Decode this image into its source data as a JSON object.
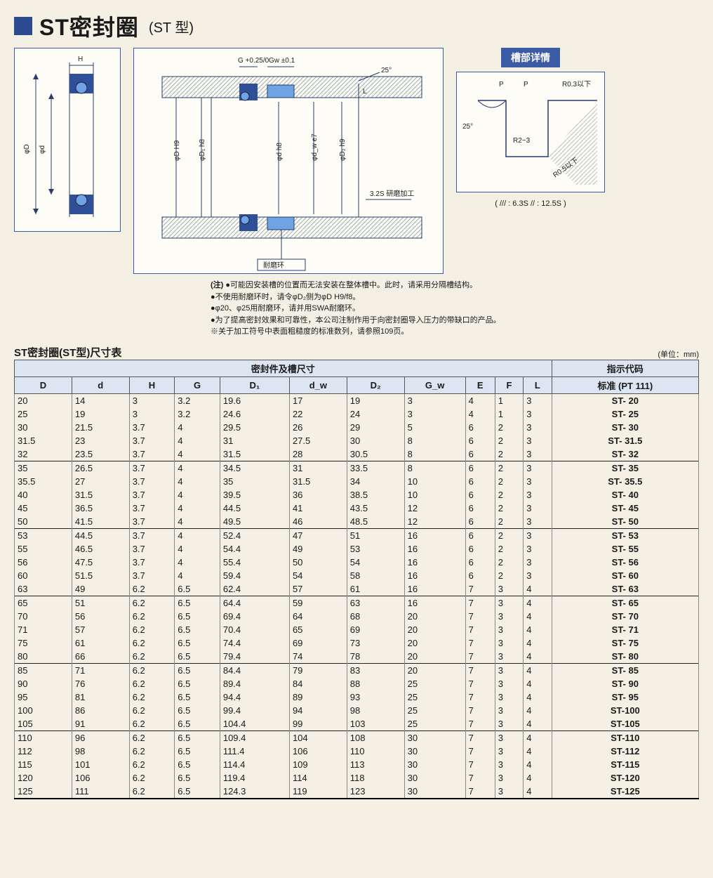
{
  "title": {
    "main": "ST密封圈",
    "sub": "(ST 型)"
  },
  "groove_badge": "槽部详情",
  "hatch_note": "( /// : 6.3S   // : 12.5S )",
  "diagram_labels": {
    "H": "H",
    "phiD": "φD",
    "phid": "φd",
    "G": "G +0.25/0",
    "Gw": "Gw ±0.1",
    "angle25": "25°",
    "L": "L",
    "phiD_H9": "φD H9",
    "phiD1_h8": "φD₁ h8",
    "phid_h8": "φd h8",
    "phidw_e7": "φd_w e7",
    "phiD2_h9": "φD₂ h9",
    "machining": "3.2S 研磨加工",
    "wearring": "耐磨环",
    "groove_P": "P",
    "groove_R03": "R0.3以下",
    "groove_R23": "R2~3",
    "groove_R05": "R0.5以下"
  },
  "notes_lead": "(注)",
  "notes": [
    "●可能因安装槽的位置而无法安装在整体槽中。此时，请采用分隔槽结构。",
    "●不使用耐磨环时，请令φD₂侧为φD H9/f8。",
    "●φ20、φ25用耐磨环，请并用SWA耐磨环。",
    "●为了提高密封效果和可靠性，本公司注制作用于向密封圈导入压力的带缺口的产品。",
    "※关于加工符号中表面粗糙度的标准数列，请参照109页。"
  ],
  "table_title": "ST密封圈(ST型)尺寸表",
  "unit": "(单位：mm)",
  "header_group_seal": "密封件及槽尺寸",
  "header_group_code": "指示代码",
  "columns": [
    "D",
    "d",
    "H",
    "G",
    "D₁",
    "d_w",
    "D₂",
    "G_w",
    "E",
    "F",
    "L"
  ],
  "code_header": "标准 (PT 111)",
  "groups": [
    [
      {
        "D": "20",
        "d": "14",
        "H": "3",
        "G": "3.2",
        "D1": "19.6",
        "dw": "17",
        "D2": "19",
        "Gw": "3",
        "E": "4",
        "F": "1",
        "L": "3",
        "code": "ST- 20"
      },
      {
        "D": "25",
        "d": "19",
        "H": "3",
        "G": "3.2",
        "D1": "24.6",
        "dw": "22",
        "D2": "24",
        "Gw": "3",
        "E": "4",
        "F": "1",
        "L": "3",
        "code": "ST- 25"
      },
      {
        "D": "30",
        "d": "21.5",
        "H": "3.7",
        "G": "4",
        "D1": "29.5",
        "dw": "26",
        "D2": "29",
        "Gw": "5",
        "E": "6",
        "F": "2",
        "L": "3",
        "code": "ST- 30"
      },
      {
        "D": "31.5",
        "d": "23",
        "H": "3.7",
        "G": "4",
        "D1": "31",
        "dw": "27.5",
        "D2": "30",
        "Gw": "8",
        "E": "6",
        "F": "2",
        "L": "3",
        "code": "ST- 31.5"
      },
      {
        "D": "32",
        "d": "23.5",
        "H": "3.7",
        "G": "4",
        "D1": "31.5",
        "dw": "28",
        "D2": "30.5",
        "Gw": "8",
        "E": "6",
        "F": "2",
        "L": "3",
        "code": "ST- 32"
      }
    ],
    [
      {
        "D": "35",
        "d": "26.5",
        "H": "3.7",
        "G": "4",
        "D1": "34.5",
        "dw": "31",
        "D2": "33.5",
        "Gw": "8",
        "E": "6",
        "F": "2",
        "L": "3",
        "code": "ST- 35"
      },
      {
        "D": "35.5",
        "d": "27",
        "H": "3.7",
        "G": "4",
        "D1": "35",
        "dw": "31.5",
        "D2": "34",
        "Gw": "10",
        "E": "6",
        "F": "2",
        "L": "3",
        "code": "ST- 35.5"
      },
      {
        "D": "40",
        "d": "31.5",
        "H": "3.7",
        "G": "4",
        "D1": "39.5",
        "dw": "36",
        "D2": "38.5",
        "Gw": "10",
        "E": "6",
        "F": "2",
        "L": "3",
        "code": "ST- 40"
      },
      {
        "D": "45",
        "d": "36.5",
        "H": "3.7",
        "G": "4",
        "D1": "44.5",
        "dw": "41",
        "D2": "43.5",
        "Gw": "12",
        "E": "6",
        "F": "2",
        "L": "3",
        "code": "ST- 45"
      },
      {
        "D": "50",
        "d": "41.5",
        "H": "3.7",
        "G": "4",
        "D1": "49.5",
        "dw": "46",
        "D2": "48.5",
        "Gw": "12",
        "E": "6",
        "F": "2",
        "L": "3",
        "code": "ST- 50"
      }
    ],
    [
      {
        "D": "53",
        "d": "44.5",
        "H": "3.7",
        "G": "4",
        "D1": "52.4",
        "dw": "47",
        "D2": "51",
        "Gw": "16",
        "E": "6",
        "F": "2",
        "L": "3",
        "code": "ST- 53"
      },
      {
        "D": "55",
        "d": "46.5",
        "H": "3.7",
        "G": "4",
        "D1": "54.4",
        "dw": "49",
        "D2": "53",
        "Gw": "16",
        "E": "6",
        "F": "2",
        "L": "3",
        "code": "ST- 55"
      },
      {
        "D": "56",
        "d": "47.5",
        "H": "3.7",
        "G": "4",
        "D1": "55.4",
        "dw": "50",
        "D2": "54",
        "Gw": "16",
        "E": "6",
        "F": "2",
        "L": "3",
        "code": "ST- 56"
      },
      {
        "D": "60",
        "d": "51.5",
        "H": "3.7",
        "G": "4",
        "D1": "59.4",
        "dw": "54",
        "D2": "58",
        "Gw": "16",
        "E": "6",
        "F": "2",
        "L": "3",
        "code": "ST- 60"
      },
      {
        "D": "63",
        "d": "49",
        "H": "6.2",
        "G": "6.5",
        "D1": "62.4",
        "dw": "57",
        "D2": "61",
        "Gw": "16",
        "E": "7",
        "F": "3",
        "L": "4",
        "code": "ST- 63"
      }
    ],
    [
      {
        "D": "65",
        "d": "51",
        "H": "6.2",
        "G": "6.5",
        "D1": "64.4",
        "dw": "59",
        "D2": "63",
        "Gw": "16",
        "E": "7",
        "F": "3",
        "L": "4",
        "code": "ST- 65"
      },
      {
        "D": "70",
        "d": "56",
        "H": "6.2",
        "G": "6.5",
        "D1": "69.4",
        "dw": "64",
        "D2": "68",
        "Gw": "20",
        "E": "7",
        "F": "3",
        "L": "4",
        "code": "ST- 70"
      },
      {
        "D": "71",
        "d": "57",
        "H": "6.2",
        "G": "6.5",
        "D1": "70.4",
        "dw": "65",
        "D2": "69",
        "Gw": "20",
        "E": "7",
        "F": "3",
        "L": "4",
        "code": "ST- 71"
      },
      {
        "D": "75",
        "d": "61",
        "H": "6.2",
        "G": "6.5",
        "D1": "74.4",
        "dw": "69",
        "D2": "73",
        "Gw": "20",
        "E": "7",
        "F": "3",
        "L": "4",
        "code": "ST- 75"
      },
      {
        "D": "80",
        "d": "66",
        "H": "6.2",
        "G": "6.5",
        "D1": "79.4",
        "dw": "74",
        "D2": "78",
        "Gw": "20",
        "E": "7",
        "F": "3",
        "L": "4",
        "code": "ST- 80"
      }
    ],
    [
      {
        "D": "85",
        "d": "71",
        "H": "6.2",
        "G": "6.5",
        "D1": "84.4",
        "dw": "79",
        "D2": "83",
        "Gw": "20",
        "E": "7",
        "F": "3",
        "L": "4",
        "code": "ST- 85"
      },
      {
        "D": "90",
        "d": "76",
        "H": "6.2",
        "G": "6.5",
        "D1": "89.4",
        "dw": "84",
        "D2": "88",
        "Gw": "25",
        "E": "7",
        "F": "3",
        "L": "4",
        "code": "ST- 90"
      },
      {
        "D": "95",
        "d": "81",
        "H": "6.2",
        "G": "6.5",
        "D1": "94.4",
        "dw": "89",
        "D2": "93",
        "Gw": "25",
        "E": "7",
        "F": "3",
        "L": "4",
        "code": "ST- 95"
      },
      {
        "D": "100",
        "d": "86",
        "H": "6.2",
        "G": "6.5",
        "D1": "99.4",
        "dw": "94",
        "D2": "98",
        "Gw": "25",
        "E": "7",
        "F": "3",
        "L": "4",
        "code": "ST-100"
      },
      {
        "D": "105",
        "d": "91",
        "H": "6.2",
        "G": "6.5",
        "D1": "104.4",
        "dw": "99",
        "D2": "103",
        "Gw": "25",
        "E": "7",
        "F": "3",
        "L": "4",
        "code": "ST-105"
      }
    ],
    [
      {
        "D": "110",
        "d": "96",
        "H": "6.2",
        "G": "6.5",
        "D1": "109.4",
        "dw": "104",
        "D2": "108",
        "Gw": "30",
        "E": "7",
        "F": "3",
        "L": "4",
        "code": "ST-110"
      },
      {
        "D": "112",
        "d": "98",
        "H": "6.2",
        "G": "6.5",
        "D1": "111.4",
        "dw": "106",
        "D2": "110",
        "Gw": "30",
        "E": "7",
        "F": "3",
        "L": "4",
        "code": "ST-112"
      },
      {
        "D": "115",
        "d": "101",
        "H": "6.2",
        "G": "6.5",
        "D1": "114.4",
        "dw": "109",
        "D2": "113",
        "Gw": "30",
        "E": "7",
        "F": "3",
        "L": "4",
        "code": "ST-115"
      },
      {
        "D": "120",
        "d": "106",
        "H": "6.2",
        "G": "6.5",
        "D1": "119.4",
        "dw": "114",
        "D2": "118",
        "Gw": "30",
        "E": "7",
        "F": "3",
        "L": "4",
        "code": "ST-120"
      },
      {
        "D": "125",
        "d": "111",
        "H": "6.2",
        "G": "6.5",
        "D1": "124.3",
        "dw": "119",
        "D2": "123",
        "Gw": "30",
        "E": "7",
        "F": "3",
        "L": "4",
        "code": "ST-125"
      }
    ]
  ],
  "colors": {
    "brand_blue": "#2b4a8f",
    "seal_blue": "#5b8fd6",
    "line": "#2a3b6a",
    "header_bg": "#dce5f2"
  }
}
